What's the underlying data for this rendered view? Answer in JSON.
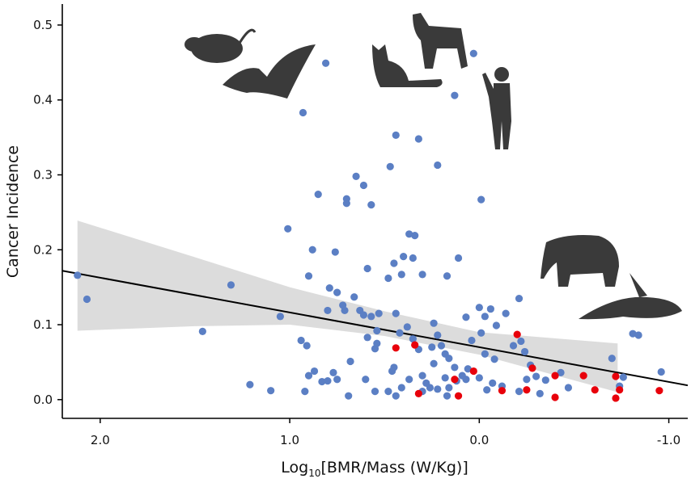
{
  "chart_data": {
    "type": "scatter",
    "ylabel": "Cancer Incidence",
    "xlabel": [
      "Log",
      "10",
      "[BMR/Mass (W/Kg)]"
    ],
    "xlim": [
      2.2,
      -1.1
    ],
    "ylim": [
      -0.025,
      0.528
    ],
    "xticks": [
      {
        "value": 2.0,
        "label": "2.0"
      },
      {
        "value": 1.0,
        "label": "1.0"
      },
      {
        "value": 0.0,
        "label": "0.0"
      },
      {
        "value": -1.0,
        "label": "-1.0"
      }
    ],
    "yticks": [
      {
        "value": 0.0,
        "label": "0.0"
      },
      0.1,
      0.2,
      0.3,
      0.4,
      0.5
    ],
    "band": {
      "color": "#dcdcdc",
      "x": [
        2.12,
        1.5,
        1.0,
        0.5,
        0.0,
        -0.73
      ],
      "lower": [
        0.092,
        0.098,
        0.1,
        0.085,
        0.06,
        0.01
      ],
      "upper": [
        0.239,
        0.19,
        0.15,
        0.118,
        0.09,
        0.075
      ]
    },
    "fit": {
      "color": "#000000",
      "x": [
        2.2,
        -1.1
      ],
      "values": [
        0.172,
        0.019
      ]
    },
    "series": [
      {
        "color": "#5b7fc4",
        "x": [
          2.12,
          2.07,
          1.46,
          1.31,
          1.21,
          1.1,
          1.05,
          1.01,
          0.93,
          0.81,
          0.85,
          0.88,
          0.9,
          0.94,
          0.91,
          0.92,
          0.9,
          0.87,
          0.83,
          0.79,
          0.8,
          0.76,
          0.75,
          0.72,
          0.7,
          0.7,
          0.65,
          0.61,
          0.57,
          0.59,
          0.63,
          0.66,
          0.61,
          0.57,
          0.53,
          0.71,
          0.68,
          0.69,
          0.77,
          0.75,
          0.8,
          0.6,
          0.55,
          0.59,
          0.55,
          0.54,
          0.54,
          0.48,
          0.47,
          0.44,
          0.45,
          0.41,
          0.4,
          0.37,
          0.35,
          0.34,
          0.32,
          0.3,
          0.22,
          0.13,
          0.11,
          0.03,
          -0.01,
          0.17,
          0.44,
          0.42,
          0.38,
          0.35,
          0.32,
          0.45,
          0.48,
          0.44,
          0.41,
          0.46,
          0.37,
          0.3,
          0.28,
          0.26,
          0.24,
          0.25,
          0.24,
          0.22,
          0.2,
          0.18,
          0.16,
          0.13,
          0.09,
          0.06,
          0.07,
          0.0,
          -0.03,
          -0.06,
          -0.14,
          -0.09,
          -0.01,
          0.04,
          -0.03,
          -0.08,
          -0.18,
          -0.21,
          -0.22,
          -0.24,
          -0.27,
          -0.3,
          -0.32,
          -0.35,
          -0.43,
          -0.47,
          0.18,
          0.16,
          0.12,
          0.07,
          0.0,
          -0.04,
          -0.07,
          -0.12,
          -0.21,
          -0.25,
          -0.7,
          -0.74,
          -0.76,
          -0.81,
          -0.84,
          -0.96,
          0.3,
          0.22,
          0.17
        ],
        "values": [
          0.166,
          0.134,
          0.091,
          0.153,
          0.02,
          0.012,
          0.111,
          0.228,
          0.383,
          0.449,
          0.274,
          0.2,
          0.165,
          0.079,
          0.072,
          0.011,
          0.032,
          0.038,
          0.024,
          0.149,
          0.119,
          0.197,
          0.143,
          0.126,
          0.262,
          0.268,
          0.298,
          0.286,
          0.26,
          0.175,
          0.119,
          0.137,
          0.113,
          0.111,
          0.115,
          0.119,
          0.051,
          0.005,
          0.036,
          0.027,
          0.025,
          0.027,
          0.011,
          0.083,
          0.068,
          0.075,
          0.092,
          0.162,
          0.311,
          0.353,
          0.182,
          0.167,
          0.191,
          0.221,
          0.189,
          0.219,
          0.348,
          0.167,
          0.313,
          0.406,
          0.189,
          0.462,
          0.267,
          0.165,
          0.115,
          0.089,
          0.097,
          0.081,
          0.067,
          0.043,
          0.011,
          0.005,
          0.016,
          0.038,
          0.027,
          0.032,
          0.022,
          0.016,
          0.048,
          0.07,
          0.102,
          0.086,
          0.072,
          0.061,
          0.055,
          0.043,
          0.032,
          0.041,
          0.11,
          0.123,
          0.111,
          0.121,
          0.115,
          0.099,
          0.089,
          0.079,
          0.061,
          0.054,
          0.072,
          0.135,
          0.078,
          0.064,
          0.046,
          0.031,
          0.008,
          0.026,
          0.036,
          0.016,
          0.029,
          0.016,
          0.025,
          0.027,
          0.029,
          0.013,
          0.022,
          0.018,
          0.011,
          0.027,
          0.055,
          0.018,
          0.03,
          0.088,
          0.086,
          0.037,
          0.011,
          0.014,
          0.005
        ]
      },
      {
        "color": "#e8000b",
        "x": [
          0.44,
          0.34,
          0.32,
          0.13,
          0.11,
          0.03,
          -0.12,
          -0.2,
          -0.25,
          -0.28,
          -0.4,
          -0.4,
          -0.55,
          -0.61,
          -0.72,
          -0.72,
          -0.74,
          -0.95
        ],
        "values": [
          0.069,
          0.073,
          0.008,
          0.027,
          0.005,
          0.038,
          0.012,
          0.087,
          0.013,
          0.042,
          0.032,
          0.003,
          0.032,
          0.013,
          0.031,
          0.002,
          0.013,
          0.012
        ]
      }
    ]
  }
}
